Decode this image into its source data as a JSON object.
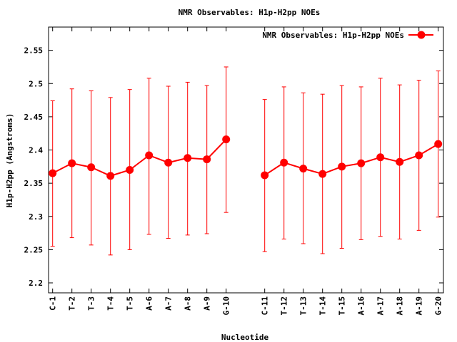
{
  "chart_data": {
    "type": "line",
    "title": "NMR Observables: H1p-H2pp NOEs",
    "xlabel": "Nucleotide",
    "ylabel": "H1p-H2pp (Angstroms)",
    "ylim": [
      2.185,
      2.585
    ],
    "yticks": [
      "2.2",
      "2.25",
      "2.3",
      "2.35",
      "2.4",
      "2.45",
      "2.5",
      "2.55"
    ],
    "legend_position": "top-right",
    "series": [
      {
        "name": "NMR Observables: H1p-H2pp NOEs",
        "color": "#ff0000",
        "segments": [
          {
            "categories": [
              "C-1",
              "T-2",
              "T-3",
              "T-4",
              "T-5",
              "A-6",
              "A-7",
              "A-8",
              "A-9",
              "G-10"
            ],
            "values": [
              2.365,
              2.38,
              2.374,
              2.361,
              2.37,
              2.392,
              2.381,
              2.388,
              2.386,
              2.416
            ],
            "error_low": [
              2.255,
              2.268,
              2.257,
              2.242,
              2.25,
              2.273,
              2.267,
              2.272,
              2.274,
              2.306
            ],
            "error_high": [
              2.474,
              2.492,
              2.489,
              2.479,
              2.491,
              2.508,
              2.496,
              2.502,
              2.497,
              2.525
            ]
          },
          {
            "categories": [
              "C-11",
              "T-12",
              "T-13",
              "T-14",
              "T-15",
              "A-16",
              "A-17",
              "A-18",
              "A-19",
              "G-20"
            ],
            "values": [
              2.362,
              2.381,
              2.372,
              2.364,
              2.375,
              2.38,
              2.389,
              2.382,
              2.392,
              2.409
            ],
            "error_low": [
              2.247,
              2.266,
              2.259,
              2.244,
              2.252,
              2.265,
              2.27,
              2.266,
              2.279,
              2.299
            ],
            "error_high": [
              2.476,
              2.495,
              2.486,
              2.484,
              2.497,
              2.495,
              2.508,
              2.498,
              2.505,
              2.519
            ]
          }
        ]
      }
    ]
  }
}
